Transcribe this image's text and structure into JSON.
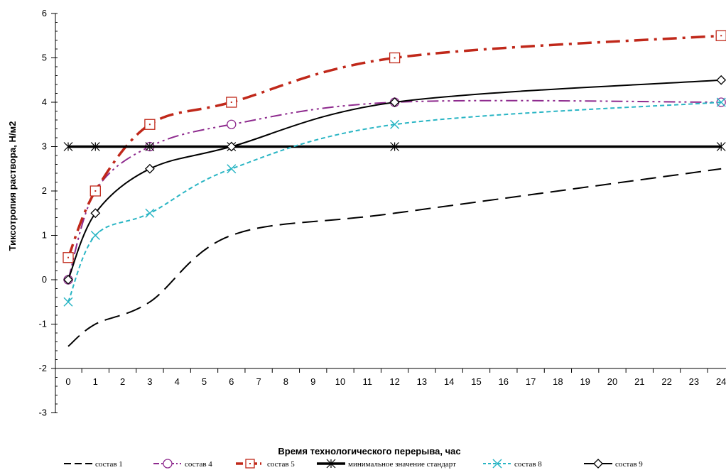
{
  "chart_data": {
    "type": "line",
    "title": "",
    "xlabel": "Время технологического перерыва, час",
    "ylabel": "Тиксотропия раствора, Н/м2",
    "xlim": [
      0,
      24
    ],
    "ylim": [
      -3,
      6
    ],
    "x_ticks": [
      "0",
      "1",
      "2",
      "3",
      "4",
      "5",
      "6",
      "7",
      "8",
      "9",
      "10",
      "11",
      "12",
      "13",
      "14",
      "15",
      "16",
      "17",
      "18",
      "19",
      "20",
      "21",
      "22",
      "23",
      "24"
    ],
    "y_ticks": [
      "-3",
      "-2",
      "-1",
      "0",
      "1",
      "2",
      "3",
      "4",
      "5",
      "6"
    ],
    "grid": false,
    "legend_position": "bottom",
    "series": [
      {
        "name": "состав 1",
        "color": "#000000",
        "dash": "long-dash",
        "marker": "none",
        "x": [
          0,
          1,
          3,
          6,
          12,
          24
        ],
        "y": [
          -1.5,
          -1.0,
          -0.5,
          1.0,
          1.5,
          2.5
        ]
      },
      {
        "name": "состав 4",
        "color": "#8e2a8e",
        "dash": "dash-dot-dot",
        "marker": "circle",
        "x": [
          0,
          1,
          3,
          6,
          12,
          24
        ],
        "y": [
          0.0,
          2.0,
          3.0,
          3.5,
          4.0,
          4.0
        ]
      },
      {
        "name": "состав 5",
        "color": "#c0281a",
        "dash": "dash-dot",
        "marker": "square",
        "x": [
          0,
          1,
          3,
          6,
          12,
          24
        ],
        "y": [
          0.5,
          2.0,
          3.5,
          4.0,
          5.0,
          5.5
        ]
      },
      {
        "name": "минимальное значение стандарт",
        "color": "#000000",
        "dash": "solid",
        "marker": "star",
        "x": [
          0,
          1,
          3,
          6,
          12,
          24
        ],
        "y": [
          3.0,
          3.0,
          3.0,
          3.0,
          3.0,
          3.0
        ]
      },
      {
        "name": "состав 8",
        "color": "#29b5c4",
        "dash": "short-dash",
        "marker": "x",
        "x": [
          0,
          1,
          3,
          6,
          12,
          24
        ],
        "y": [
          -0.5,
          1.0,
          1.5,
          2.5,
          3.5,
          4.0
        ]
      },
      {
        "name": "состав 9",
        "color": "#000000",
        "dash": "solid",
        "marker": "diamond",
        "x": [
          0,
          1,
          3,
          6,
          12,
          24
        ],
        "y": [
          0.0,
          1.5,
          2.5,
          3.0,
          4.0,
          4.5
        ]
      }
    ]
  }
}
